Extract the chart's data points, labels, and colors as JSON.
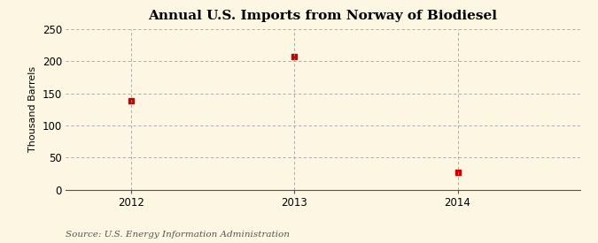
{
  "title": "Annual U.S. Imports from Norway of Biodiesel",
  "ylabel": "Thousand Barrels",
  "source": "Source: U.S. Energy Information Administration",
  "years": [
    2012,
    2013,
    2014
  ],
  "values": [
    138,
    207,
    27
  ],
  "ylim": [
    0,
    250
  ],
  "yticks": [
    0,
    50,
    100,
    150,
    200,
    250
  ],
  "xlim": [
    2011.6,
    2014.75
  ],
  "marker_color": "#cc0000",
  "marker_size": 4,
  "background_color": "#fdf6e3",
  "grid_color": "#999999",
  "title_fontsize": 11,
  "label_fontsize": 8,
  "tick_fontsize": 8.5,
  "source_fontsize": 7.5
}
